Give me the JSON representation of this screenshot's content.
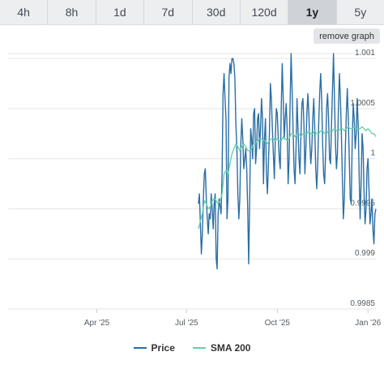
{
  "tabs": [
    {
      "label": "4h",
      "active": false
    },
    {
      "label": "8h",
      "active": false
    },
    {
      "label": "1d",
      "active": false
    },
    {
      "label": "7d",
      "active": false
    },
    {
      "label": "30d",
      "active": false
    },
    {
      "label": "120d",
      "active": false
    },
    {
      "label": "1y",
      "active": true
    },
    {
      "label": "5y",
      "active": false
    }
  ],
  "remove_graph_label": "remove graph",
  "chart_data": {
    "type": "line",
    "x_ticks": [
      {
        "label": "Apr '25",
        "day": 90
      },
      {
        "label": "Jul '25",
        "day": 181
      },
      {
        "label": "Oct '25",
        "day": 273
      },
      {
        "label": "Jan '26",
        "day": 365
      }
    ],
    "y_ticks": [
      1.001,
      1.0005,
      1,
      0.9995,
      0.999,
      0.9985
    ],
    "y_tick_labels": [
      "1.001",
      "1.0005",
      "1",
      "0.9995",
      "0.999",
      "0.9985"
    ],
    "ylim": [
      0.9985,
      1.00105
    ],
    "xlim": [
      0,
      373
    ],
    "legend_position": "bottom",
    "series": [
      {
        "name": "Price",
        "color": "#2b6ea5",
        "points": [
          [
            193,
            0.99955
          ],
          [
            194,
            0.99965
          ],
          [
            195,
            0.99935
          ],
          [
            196,
            0.99905
          ],
          [
            197,
            0.99925
          ],
          [
            198,
            0.9996
          ],
          [
            199,
            0.99985
          ],
          [
            200,
            0.9999
          ],
          [
            201,
            0.9996
          ],
          [
            202,
            0.9994
          ],
          [
            203,
            0.99925
          ],
          [
            204,
            0.99945
          ],
          [
            205,
            0.9994
          ],
          [
            206,
            0.99965
          ],
          [
            207,
            0.9995
          ],
          [
            208,
            0.9993
          ],
          [
            209,
            0.99955
          ],
          [
            210,
            0.99965
          ],
          [
            211,
            0.999
          ],
          [
            212,
            0.9989
          ],
          [
            213,
            0.99945
          ],
          [
            214,
            0.9996
          ],
          [
            216,
            0.99945
          ],
          [
            217,
            0.99985
          ],
          [
            218,
            1.00065
          ],
          [
            219,
            1.00085
          ],
          [
            220,
            1.0006
          ],
          [
            221,
            1.0004
          ],
          [
            222,
            0.9994
          ],
          [
            223,
            0.9996
          ],
          [
            224,
            1.0008
          ],
          [
            225,
            1.00095
          ],
          [
            226,
            1.00085
          ],
          [
            227,
            1.001
          ],
          [
            228,
            1.001
          ],
          [
            229,
            1.00095
          ],
          [
            230,
            1.0008
          ],
          [
            231,
            1.00035
          ],
          [
            232,
            1.0001
          ],
          [
            233,
            0.99965
          ],
          [
            234,
            0.9994
          ],
          [
            235,
            0.9996
          ],
          [
            236,
            1.00015
          ],
          [
            237,
            1.0004
          ],
          [
            238,
            1.0002
          ],
          [
            239,
            0.9999
          ],
          [
            240,
            1.0
          ],
          [
            241,
            1.0001
          ],
          [
            242,
            0.9999
          ],
          [
            243,
            0.9995
          ],
          [
            244,
            0.99895
          ],
          [
            245,
            0.9996
          ],
          [
            246,
            1.0003
          ],
          [
            247,
            1.0002
          ],
          [
            248,
            1.0
          ],
          [
            249,
            1.00045
          ],
          [
            250,
            1.0005
          ],
          [
            251,
            0.99995
          ],
          [
            252,
            1.0001
          ],
          [
            253,
            1.0004
          ],
          [
            254,
            1.00045
          ],
          [
            255,
            1.0001
          ],
          [
            256,
            1.0003
          ],
          [
            257,
            1.0006
          ],
          [
            258,
            1.0004
          ],
          [
            259,
            0.99975
          ],
          [
            260,
            1.0002
          ],
          [
            261,
            1.0004
          ],
          [
            262,
            0.99985
          ],
          [
            263,
            0.99965
          ],
          [
            264,
            0.99995
          ],
          [
            265,
            1.00025
          ],
          [
            266,
            1.00075
          ],
          [
            267,
            1.0006
          ],
          [
            268,
            1.0003
          ],
          [
            269,
            1.00005
          ],
          [
            270,
            0.9998
          ],
          [
            271,
            1.0002
          ],
          [
            272,
            1.0005
          ],
          [
            273,
            1.00045
          ],
          [
            274,
            1.0002
          ],
          [
            275,
            1.0
          ],
          [
            276,
            0.9999
          ],
          [
            277,
            1.0005
          ],
          [
            278,
            1.00095
          ],
          [
            279,
            1.0006
          ],
          [
            280,
            1.0002
          ],
          [
            281,
            1.0004
          ],
          [
            282,
            1.00055
          ],
          [
            283,
            1.0003
          ],
          [
            284,
            0.99975
          ],
          [
            285,
            1.0
          ],
          [
            286,
            1.00055
          ],
          [
            287,
            1.00105
          ],
          [
            288,
            1.0007
          ],
          [
            289,
            1.0003
          ],
          [
            290,
            0.9999
          ],
          [
            291,
            0.99975
          ],
          [
            292,
            1.0001
          ],
          [
            293,
            1.0006
          ],
          [
            294,
            1.0003
          ],
          [
            295,
            1.0
          ],
          [
            296,
            0.99985
          ],
          [
            297,
            1.00025
          ],
          [
            298,
            1.00055
          ],
          [
            299,
            1.0006
          ],
          [
            300,
            1.00035
          ],
          [
            301,
            0.99985
          ],
          [
            302,
            1.0001
          ],
          [
            303,
            1.00045
          ],
          [
            304,
            1.00065
          ],
          [
            305,
            1.00045
          ],
          [
            306,
            1.00015
          ],
          [
            307,
            0.99995
          ],
          [
            308,
            1.0001
          ],
          [
            309,
            1.0004
          ],
          [
            310,
            1.0006
          ],
          [
            311,
            1.0003
          ],
          [
            312,
            0.9999
          ],
          [
            313,
            0.9997
          ],
          [
            314,
            0.99995
          ],
          [
            315,
            1.00035
          ],
          [
            316,
            1.00065
          ],
          [
            317,
            1.00085
          ],
          [
            318,
            1.0006
          ],
          [
            319,
            1.00015
          ],
          [
            320,
            0.99985
          ],
          [
            321,
            0.99975
          ],
          [
            322,
            1.00005
          ],
          [
            323,
            1.0005
          ],
          [
            324,
            1.00065
          ],
          [
            325,
            1.0004
          ],
          [
            326,
            1.0
          ],
          [
            327,
            0.99995
          ],
          [
            328,
            1.00035
          ],
          [
            329,
            1.0007
          ],
          [
            330,
            1.00105
          ],
          [
            331,
            1.0006
          ],
          [
            332,
            1.00015
          ],
          [
            333,
            0.9999
          ],
          [
            334,
            1.00005
          ],
          [
            335,
            1.0005
          ],
          [
            336,
            1.00085
          ],
          [
            337,
            1.0006
          ],
          [
            338,
            1.00025
          ],
          [
            339,
            0.9998
          ],
          [
            340,
            0.9994
          ],
          [
            341,
            0.9996
          ],
          [
            342,
            1.0001
          ],
          [
            343,
            1.00045
          ],
          [
            344,
            1.0007
          ],
          [
            345,
            1.0004
          ],
          [
            346,
            1.0
          ],
          [
            347,
            0.9996
          ],
          [
            348,
            0.99955
          ],
          [
            349,
            1.0002
          ],
          [
            350,
            1.00055
          ],
          [
            351,
            1.0004
          ],
          [
            352,
            1.0001
          ],
          [
            353,
            1.00025
          ],
          [
            354,
            1.0006
          ],
          [
            355,
            1.00035
          ],
          [
            356,
            0.99985
          ],
          [
            357,
            0.9994
          ],
          [
            358,
            0.99975
          ],
          [
            359,
            1.00025
          ],
          [
            360,
            1.0001
          ],
          [
            361,
            0.99965
          ],
          [
            362,
            0.99935
          ],
          [
            363,
            0.9995
          ],
          [
            364,
            0.9999
          ],
          [
            365,
            1.0
          ],
          [
            366,
            0.9997
          ],
          [
            367,
            0.99935
          ],
          [
            368,
            0.99945
          ],
          [
            369,
            0.9996
          ],
          [
            370,
            0.9993
          ],
          [
            371,
            0.99915
          ],
          [
            372,
            0.99945
          ],
          [
            373,
            0.9995
          ]
        ]
      },
      {
        "name": "SMA 200",
        "color": "#5fd1a6",
        "points": [
          [
            193,
            0.9993
          ],
          [
            195,
            0.99938
          ],
          [
            197,
            0.99945
          ],
          [
            199,
            0.99958
          ],
          [
            201,
            0.99955
          ],
          [
            203,
            0.9995
          ],
          [
            205,
            0.99952
          ],
          [
            207,
            0.99958
          ],
          [
            209,
            0.9996
          ],
          [
            211,
            0.99958
          ],
          [
            213,
            0.99955
          ],
          [
            215,
            0.99958
          ],
          [
            217,
            0.99965
          ],
          [
            219,
            0.99985
          ],
          [
            221,
            0.99988
          ],
          [
            223,
            0.99985
          ],
          [
            225,
            0.99995
          ],
          [
            227,
            1.00005
          ],
          [
            229,
            1.0001
          ],
          [
            231,
            1.00015
          ],
          [
            233,
            1.00012
          ],
          [
            235,
            1.00008
          ],
          [
            237,
            1.00012
          ],
          [
            239,
            1.00015
          ],
          [
            241,
            1.00012
          ],
          [
            243,
            1.00008
          ],
          [
            245,
            1.00008
          ],
          [
            247,
            1.0001
          ],
          [
            249,
            1.00015
          ],
          [
            251,
            1.00015
          ],
          [
            253,
            1.00018
          ],
          [
            255,
            1.0002
          ],
          [
            257,
            1.0002
          ],
          [
            259,
            1.00018
          ],
          [
            261,
            1.00018
          ],
          [
            263,
            1.00015
          ],
          [
            265,
            1.00018
          ],
          [
            267,
            1.0002
          ],
          [
            269,
            1.0002
          ],
          [
            271,
            1.00018
          ],
          [
            273,
            1.0002
          ],
          [
            275,
            1.00018
          ],
          [
            277,
            1.00018
          ],
          [
            279,
            1.00022
          ],
          [
            281,
            1.0002
          ],
          [
            283,
            1.00018
          ],
          [
            285,
            1.0002
          ],
          [
            287,
            1.00025
          ],
          [
            289,
            1.00025
          ],
          [
            291,
            1.00022
          ],
          [
            293,
            1.00025
          ],
          [
            295,
            1.00025
          ],
          [
            297,
            1.00022
          ],
          [
            299,
            1.00025
          ],
          [
            301,
            1.00025
          ],
          [
            303,
            1.00025
          ],
          [
            305,
            1.00028
          ],
          [
            307,
            1.00025
          ],
          [
            309,
            1.00025
          ],
          [
            311,
            1.00028
          ],
          [
            313,
            1.00025
          ],
          [
            315,
            1.00025
          ],
          [
            317,
            1.00028
          ],
          [
            319,
            1.00028
          ],
          [
            321,
            1.00025
          ],
          [
            323,
            1.00025
          ],
          [
            325,
            1.00028
          ],
          [
            327,
            1.00028
          ],
          [
            329,
            1.00028
          ],
          [
            331,
            1.0003
          ],
          [
            333,
            1.00028
          ],
          [
            335,
            1.00028
          ],
          [
            337,
            1.0003
          ],
          [
            339,
            1.0003
          ],
          [
            341,
            1.00028
          ],
          [
            343,
            1.0003
          ],
          [
            345,
            1.00032
          ],
          [
            347,
            1.0003
          ],
          [
            349,
            1.0003
          ],
          [
            351,
            1.00032
          ],
          [
            353,
            1.0003
          ],
          [
            355,
            1.0003
          ],
          [
            357,
            1.0003
          ],
          [
            359,
            1.00032
          ],
          [
            361,
            1.0003
          ],
          [
            363,
            1.00028
          ],
          [
            365,
            1.0003
          ],
          [
            367,
            1.00028
          ],
          [
            369,
            1.00025
          ],
          [
            371,
            1.00025
          ],
          [
            373,
            1.00022
          ]
        ]
      }
    ]
  }
}
